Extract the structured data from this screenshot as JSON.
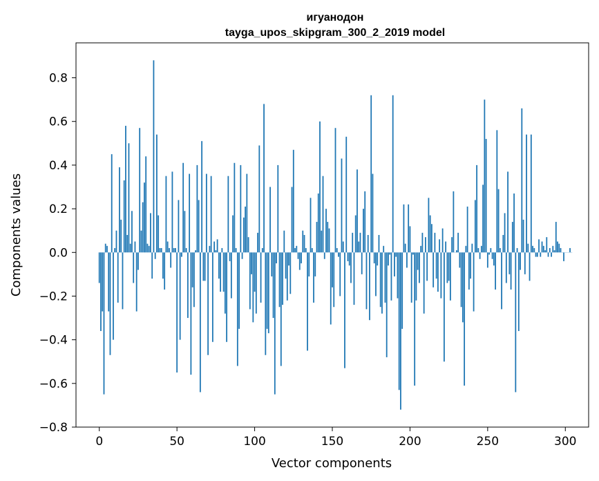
{
  "chart_data": {
    "type": "bar",
    "title": "игуанодон",
    "subtitle": "tayga_upos_skipgram_300_2_2019 model",
    "xlabel": "Vector components",
    "ylabel": "Components values",
    "xlim": [
      -15,
      315
    ],
    "ylim": [
      -0.8,
      0.96
    ],
    "xticks": [
      0,
      50,
      100,
      150,
      200,
      250,
      300
    ],
    "yticks": [
      -0.8,
      -0.6,
      -0.4,
      -0.2,
      0.0,
      0.2,
      0.4,
      0.6,
      0.8
    ],
    "ytick_labels": [
      "−0.8",
      "−0.6",
      "−0.4",
      "−0.2",
      "0.0",
      "0.2",
      "0.4",
      "0.6",
      "0.8"
    ],
    "bar_color": "#1f77b4",
    "grid": false,
    "values": [
      -0.14,
      -0.36,
      -0.27,
      -0.65,
      0.04,
      0.03,
      -0.27,
      -0.47,
      0.45,
      -0.4,
      0.02,
      0.1,
      -0.23,
      0.39,
      0.15,
      -0.26,
      0.33,
      0.58,
      0.08,
      0.5,
      0.04,
      0.19,
      -0.14,
      0.05,
      -0.27,
      -0.08,
      0.57,
      0.1,
      0.23,
      0.32,
      0.44,
      0.04,
      0.03,
      0.18,
      -0.12,
      0.88,
      -0.03,
      0.54,
      0.17,
      0.02,
      0.02,
      -0.12,
      -0.17,
      0.35,
      0.05,
      0.02,
      -0.07,
      0.37,
      0.02,
      0.02,
      -0.55,
      0.24,
      -0.4,
      -0.02,
      0.41,
      0.19,
      0.02,
      -0.3,
      0.36,
      -0.56,
      -0.16,
      -0.25,
      0.01,
      0.4,
      0.24,
      -0.64,
      0.51,
      -0.13,
      -0.13,
      0.36,
      -0.47,
      0.03,
      0.35,
      -0.41,
      0.05,
      0.01,
      0.06,
      -0.12,
      -0.18,
      0.02,
      -0.18,
      -0.28,
      -0.41,
      0.35,
      -0.04,
      -0.21,
      0.17,
      0.41,
      0.02,
      -0.52,
      -0.35,
      0.4,
      -0.03,
      0.16,
      0.21,
      0.36,
      0.07,
      -0.26,
      -0.1,
      -0.32,
      -0.18,
      -0.28,
      0.09,
      0.49,
      -0.23,
      0.02,
      0.68,
      -0.47,
      -0.35,
      -0.37,
      0.3,
      -0.11,
      -0.3,
      -0.65,
      -0.05,
      0.4,
      -0.25,
      -0.52,
      -0.24,
      0.1,
      -0.12,
      -0.22,
      -0.06,
      -0.19,
      0.3,
      0.47,
      0.02,
      0.03,
      -0.03,
      -0.08,
      -0.05,
      0.1,
      0.08,
      0.02,
      -0.45,
      -0.11,
      0.25,
      0.02,
      -0.23,
      -0.11,
      0.14,
      0.27,
      0.6,
      0.1,
      0.35,
      -0.03,
      0.2,
      0.14,
      0.11,
      -0.33,
      -0.16,
      -0.25,
      0.57,
      0.02,
      -0.02,
      -0.2,
      0.43,
      0.05,
      -0.53,
      0.53,
      -0.04,
      -0.06,
      -0.14,
      0.09,
      -0.24,
      0.17,
      0.38,
      0.05,
      0.09,
      -0.1,
      0.2,
      0.28,
      -0.26,
      0.08,
      -0.31,
      0.72,
      0.36,
      -0.05,
      -0.2,
      -0.06,
      0.08,
      -0.25,
      -0.28,
      0.03,
      -0.23,
      -0.48,
      -0.06,
      -0.01,
      -0.22,
      0.72,
      -0.11,
      -0.02,
      -0.21,
      -0.63,
      -0.72,
      -0.35,
      0.22,
      0.04,
      -0.07,
      0.22,
      0.12,
      -0.23,
      -0.01,
      -0.61,
      -0.22,
      -0.08,
      -0.14,
      0.03,
      0.09,
      -0.28,
      0.07,
      -0.13,
      0.25,
      0.17,
      0.13,
      -0.16,
      0.09,
      -0.12,
      -0.18,
      0.06,
      -0.21,
      0.11,
      -0.5,
      0.05,
      -0.14,
      -0.13,
      -0.22,
      0.07,
      0.28,
      0.0,
      0.01,
      0.09,
      -0.07,
      -0.25,
      -0.32,
      -0.61,
      0.03,
      0.21,
      -0.17,
      -0.12,
      0.04,
      -0.27,
      0.24,
      0.4,
      0.02,
      -0.03,
      0.03,
      0.31,
      0.7,
      0.52,
      -0.07,
      -0.01,
      0.02,
      -0.03,
      -0.06,
      -0.17,
      0.56,
      0.29,
      0.02,
      -0.26,
      0.08,
      0.18,
      -0.14,
      0.37,
      -0.1,
      -0.17,
      0.14,
      0.27,
      -0.64,
      0.02,
      -0.36,
      -0.08,
      0.66,
      0.15,
      -0.1,
      0.54,
      0.04,
      -0.13,
      0.54,
      0.03,
      0.02,
      -0.02,
      -0.02,
      0.06,
      -0.02,
      0.05,
      0.03,
      0.01,
      0.07,
      -0.02,
      0.02,
      -0.02,
      0.03,
      0.01,
      0.14,
      0.05,
      0.04,
      0.02,
      0.0,
      -0.04,
      0.0,
      0.0,
      0.0,
      0.02,
      0.0
    ]
  }
}
